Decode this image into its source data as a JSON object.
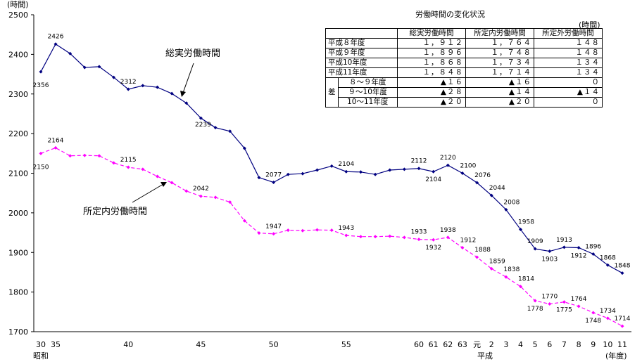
{
  "chart_data": {
    "type": "line",
    "y_label": "(時間)",
    "x_label": "(年度)",
    "era_labels": [
      "昭和",
      "平成"
    ],
    "categories": [
      "30",
      "35",
      null,
      null,
      null,
      null,
      "40",
      null,
      null,
      null,
      null,
      "45",
      null,
      null,
      null,
      null,
      "50",
      null,
      null,
      null,
      null,
      "55",
      null,
      null,
      null,
      null,
      "60",
      "61",
      "62",
      "63",
      "元",
      "2",
      "3",
      "4",
      "5",
      "6",
      "7",
      "8",
      "9",
      "10",
      "11"
    ],
    "series": [
      {
        "name": "総実労働時間",
        "color": "#000080",
        "dashed": false,
        "values": [
          2356,
          2426,
          2402,
          2367,
          2369,
          2342,
          2312,
          2321,
          2317,
          2301,
          2277,
          2239,
          2215,
          2206,
          2163,
          2089,
          2077,
          2097,
          2099,
          2108,
          2118,
          2104,
          2103,
          2097,
          2108,
          2110,
          2112,
          2104,
          2120,
          2100,
          2076,
          2044,
          2008,
          1958,
          1909,
          1903,
          1913,
          1912,
          1896,
          1868,
          1848
        ],
        "labeled_points": [
          0,
          1,
          6,
          11,
          16,
          21,
          26,
          27,
          28,
          29,
          30,
          31,
          32,
          33,
          34,
          35,
          36,
          37,
          38,
          39,
          40
        ]
      },
      {
        "name": "所定内労働時間",
        "color": "#ff00ff",
        "dashed": true,
        "values": [
          2150,
          2164,
          2144,
          2145,
          2144,
          2126,
          2115,
          2110,
          2092,
          2076,
          2055,
          2042,
          2039,
          2027,
          1980,
          1949,
          1947,
          1956,
          1955,
          1957,
          1956,
          1943,
          1940,
          1940,
          1941,
          1938,
          1933,
          1932,
          1938,
          1912,
          1888,
          1859,
          1838,
          1814,
          1778,
          1770,
          1775,
          1764,
          1748,
          1734,
          1714
        ],
        "labeled_points": [
          0,
          1,
          6,
          11,
          16,
          21,
          26,
          27,
          28,
          29,
          30,
          31,
          32,
          33,
          34,
          35,
          36,
          37,
          38,
          39,
          40
        ]
      }
    ],
    "ylim": [
      1700,
      2500
    ],
    "yticks": [
      1700,
      1800,
      1900,
      2000,
      2100,
      2200,
      2300,
      2400,
      2500
    ],
    "grid": false
  },
  "table": {
    "title": "労働時間の変化状況",
    "unit": "(時間)",
    "header": [
      "総実労働時間",
      "所定内労働時間",
      "所定外労働時間"
    ],
    "rows": [
      [
        "平成８年度",
        "１，９１２",
        "１，７６４",
        "１４８"
      ],
      [
        "平成９年度",
        "１，８９６",
        "１，７４８",
        "１４８"
      ],
      [
        "平成10年度",
        "１，８６８",
        "１，７３４",
        "１３４"
      ],
      [
        "平成11年度",
        "１，８４８",
        "１，７１４",
        "１３４"
      ]
    ],
    "diff_label": "差",
    "diff_rows": [
      [
        "８～９年度",
        "▲１６",
        "▲１６",
        "０"
      ],
      [
        "９～10年度",
        "▲２８",
        "▲１４",
        "▲１４"
      ],
      [
        "10～11年度",
        "▲２０",
        "▲２０",
        "０"
      ]
    ]
  }
}
